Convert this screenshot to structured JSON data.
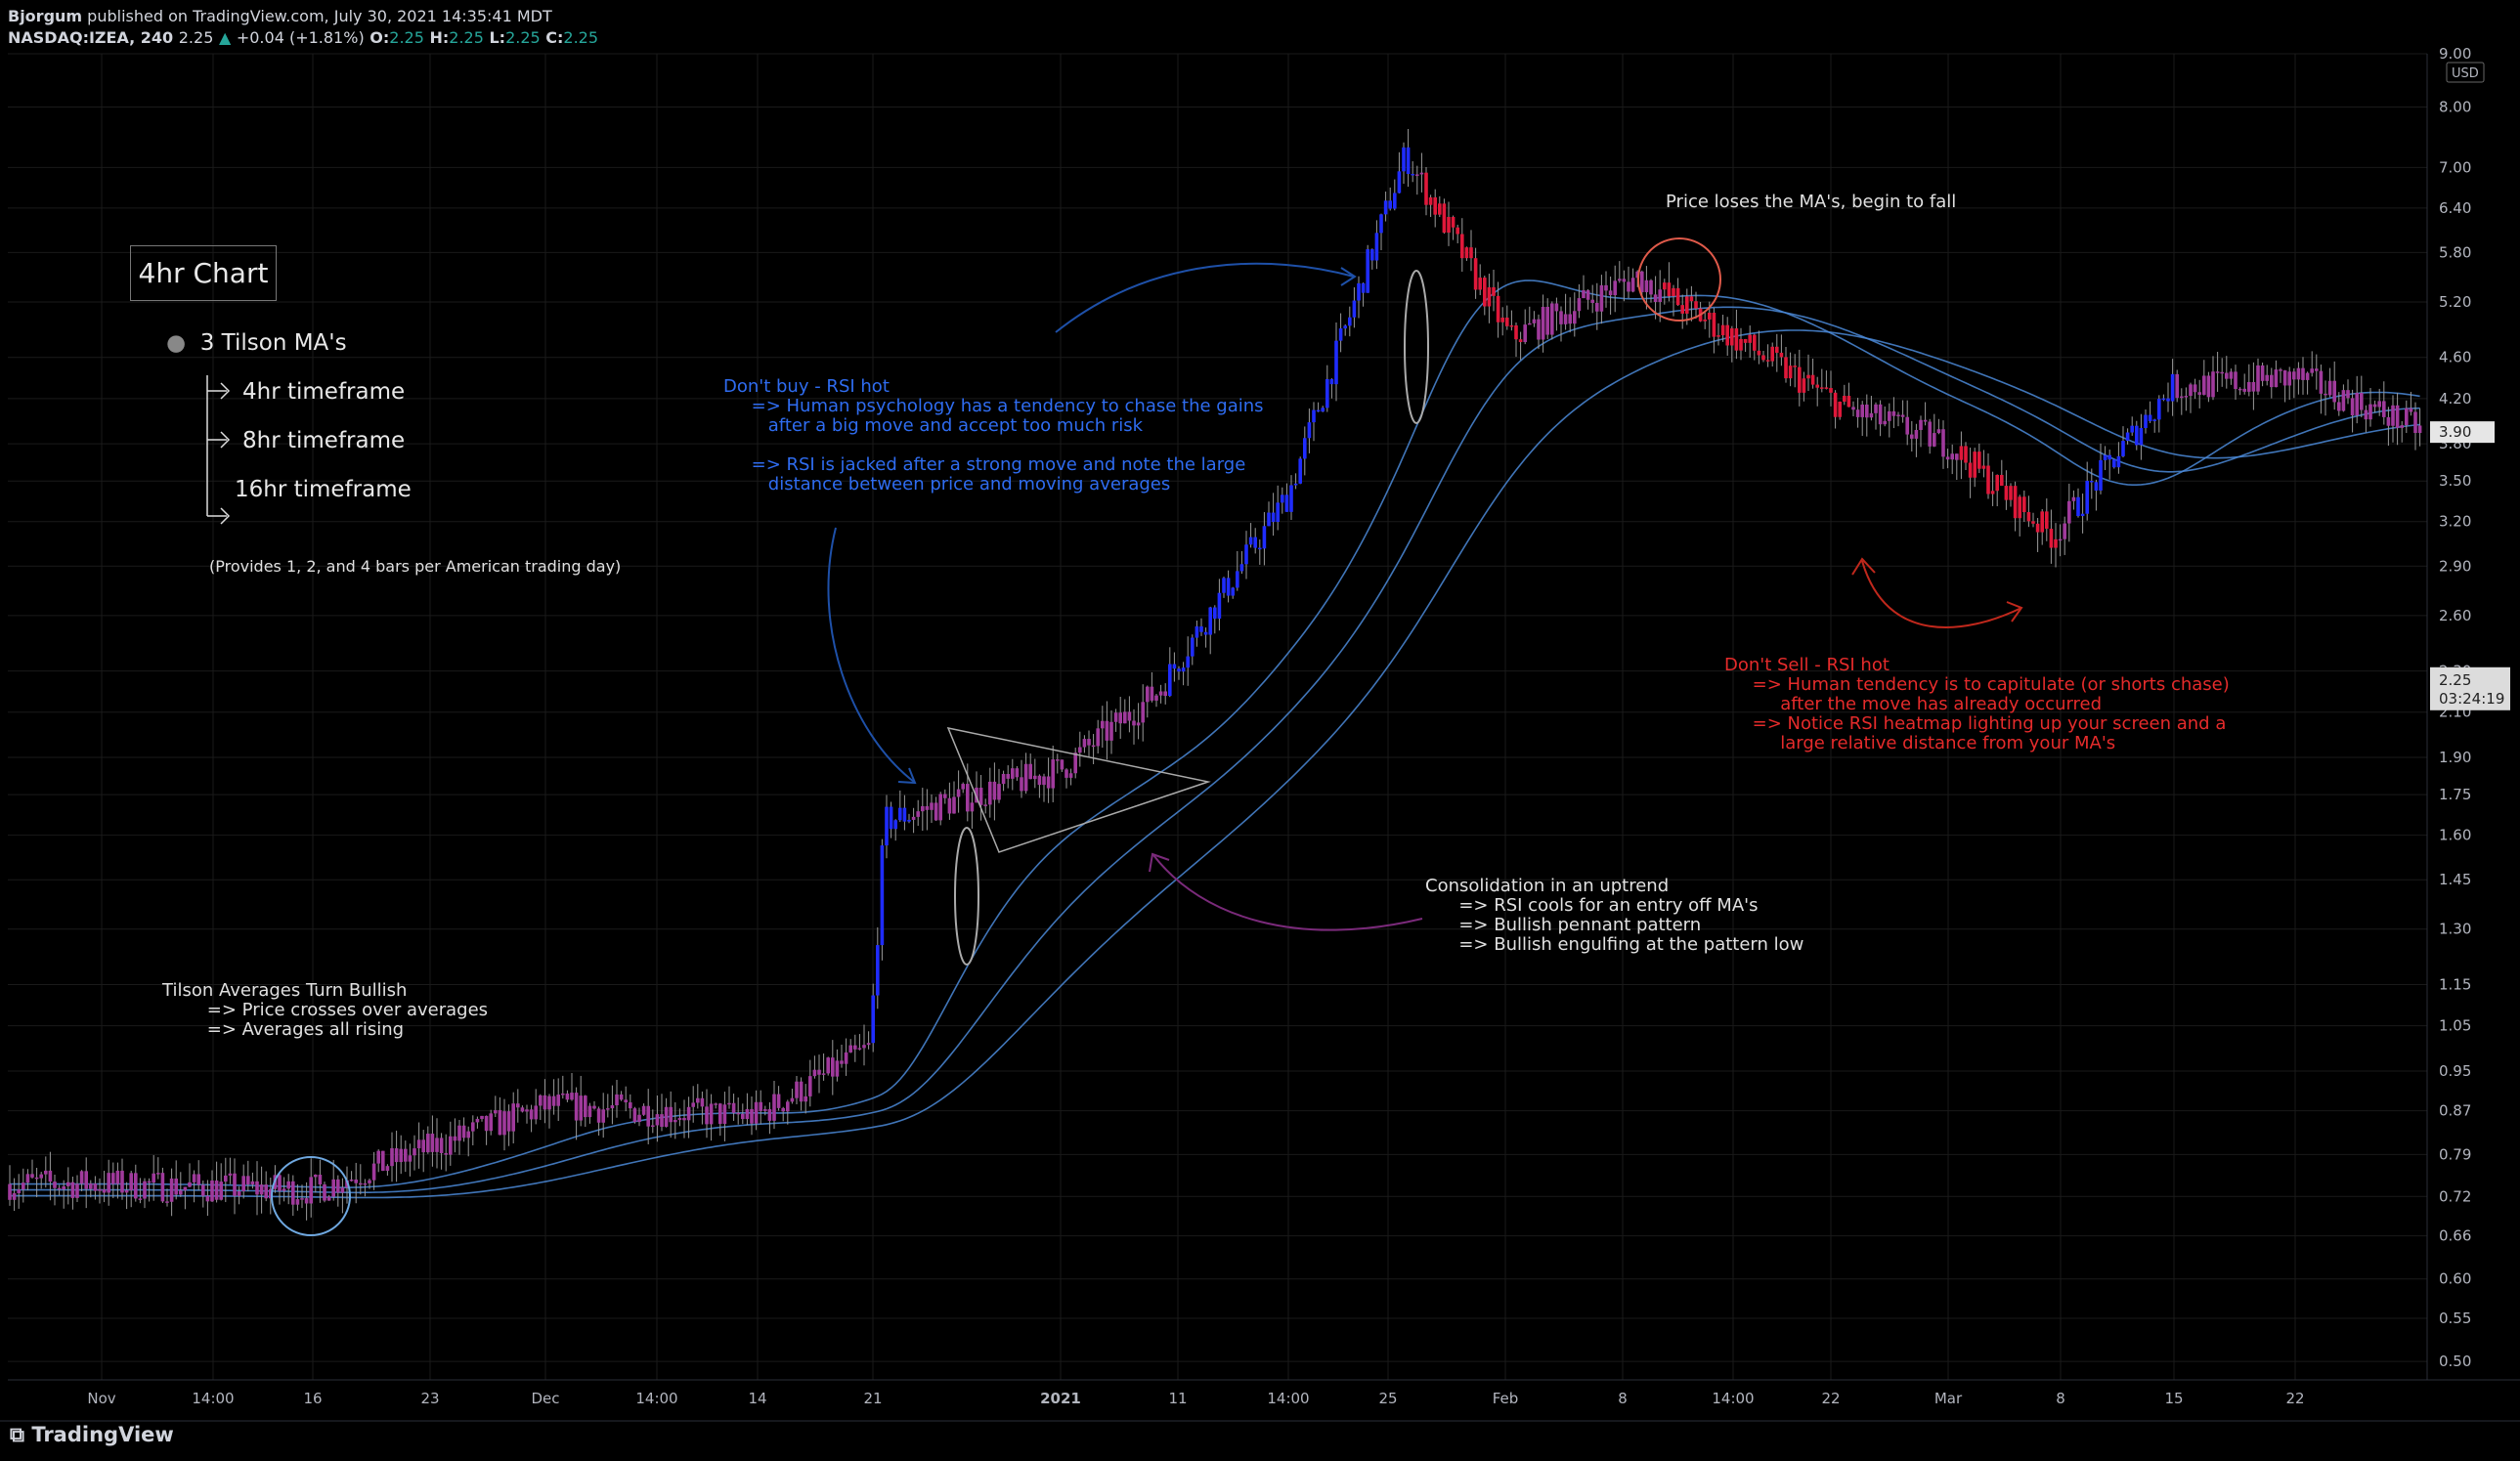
{
  "header": {
    "publisher": "Bjorgum",
    "published_text": "published on TradingView.com, July 30, 2021 14:35:41 MDT",
    "symbol_line": "NASDAQ:IZEA, 240",
    "last": "2.25",
    "change": "+0.04 (+1.81%)",
    "ohlc": {
      "o_label": "O:",
      "o": "2.25",
      "h_label": "H:",
      "h": "2.25",
      "l_label": "L:",
      "l": "2.25",
      "c_label": "C:",
      "c": "2.25"
    }
  },
  "footer": {
    "brand": "TradingView"
  },
  "annotations": {
    "legend_title": "4hr Chart",
    "legend_heading": "3 Tilson MA's",
    "legend_items": [
      "4hr timeframe",
      "8hr timeframe",
      "16hr timeframe"
    ],
    "legend_note": "(Provides 1, 2, and 4 bars per American trading day)",
    "tilson_bullish": [
      "Tilson Averages Turn Bullish",
      "        => Price crosses over averages",
      "        => Averages all rising"
    ],
    "dont_buy": [
      "Don't buy - RSI hot",
      "     => Human psychology has a tendency to chase the gains",
      "        after a big move and accept too much risk",
      "",
      "     => RSI is jacked after a strong move and note the large",
      "        distance between price and moving averages"
    ],
    "consolidation": [
      "Consolidation in an uptrend",
      "      => RSI cools for an entry off MA's",
      "      => Bullish pennant pattern",
      "      => Bullish engulfing at the pattern low"
    ],
    "price_loses": "Price loses the MA's, begin to fall",
    "dont_sell": [
      "Don't Sell - RSI hot",
      "     => Human tendency is to capitulate (or shorts chase)",
      "          after the move has already occurred",
      "     => Notice RSI heatmap lighting up your screen and a",
      "          large relative distance from your MA's"
    ]
  },
  "chart_data": {
    "type": "candlestick",
    "symbol": "NASDAQ:IZEA",
    "interval": "240",
    "currency": "USD",
    "y_scale": "log",
    "ylim": [
      0.48,
      9.0
    ],
    "y_ticks": [
      "9.00",
      "8.00",
      "7.00",
      "6.40",
      "5.80",
      "5.20",
      "4.60",
      "4.20",
      "3.80",
      "3.50",
      "3.20",
      "2.90",
      "2.60",
      "2.30",
      "2.10",
      "1.90",
      "1.75",
      "1.60",
      "1.45",
      "1.30",
      "1.15",
      "1.05",
      "0.95",
      "0.87",
      "0.79",
      "0.72",
      "0.66",
      "0.60",
      "0.55",
      "0.50"
    ],
    "x_ticks": [
      "Nov",
      "14:00",
      "16",
      "23",
      "Dec",
      "14:00",
      "14",
      "21",
      "2021",
      "11",
      "14:00",
      "25",
      "Feb",
      "8",
      "14:00",
      "22",
      "Mar",
      "8",
      "15",
      "22"
    ],
    "price_labels": {
      "last": "3.90",
      "current": "2.25",
      "countdown": "03:24:19"
    },
    "ma_series": [
      "Tilson 4hr",
      "Tilson 8hr",
      "Tilson 16hr"
    ],
    "key_points": [
      {
        "date": "Nov",
        "close": 0.74
      },
      {
        "date": "16",
        "close": 0.73
      },
      {
        "date": "Dec",
        "close": 0.88
      },
      {
        "date": "14",
        "close": 0.86
      },
      {
        "date": "21",
        "close": 1.0
      },
      {
        "date": "21",
        "close": 1.65
      },
      {
        "date": "2021",
        "close": 1.85
      },
      {
        "date": "11",
        "close": 2.2
      },
      {
        "date": "14:00",
        "close": 3.4
      },
      {
        "date": "25",
        "close": 7.2
      },
      {
        "date": "Feb",
        "close": 4.8
      },
      {
        "date": "8",
        "close": 5.5
      },
      {
        "date": "22",
        "close": 4.1
      },
      {
        "date": "Mar",
        "close": 3.8
      },
      {
        "date": "8",
        "close": 3.1
      },
      {
        "date": "15",
        "close": 4.3
      },
      {
        "date": "22",
        "close": 4.4
      },
      {
        "date": "end",
        "close": 3.9
      }
    ],
    "colors": {
      "bull": "#1f2cff",
      "bear": "#e0183a",
      "neutral": "#a03a9c",
      "ma": "#4b8ad8",
      "ma_red": "#e0604a",
      "grid": "#1a1a1a"
    }
  }
}
